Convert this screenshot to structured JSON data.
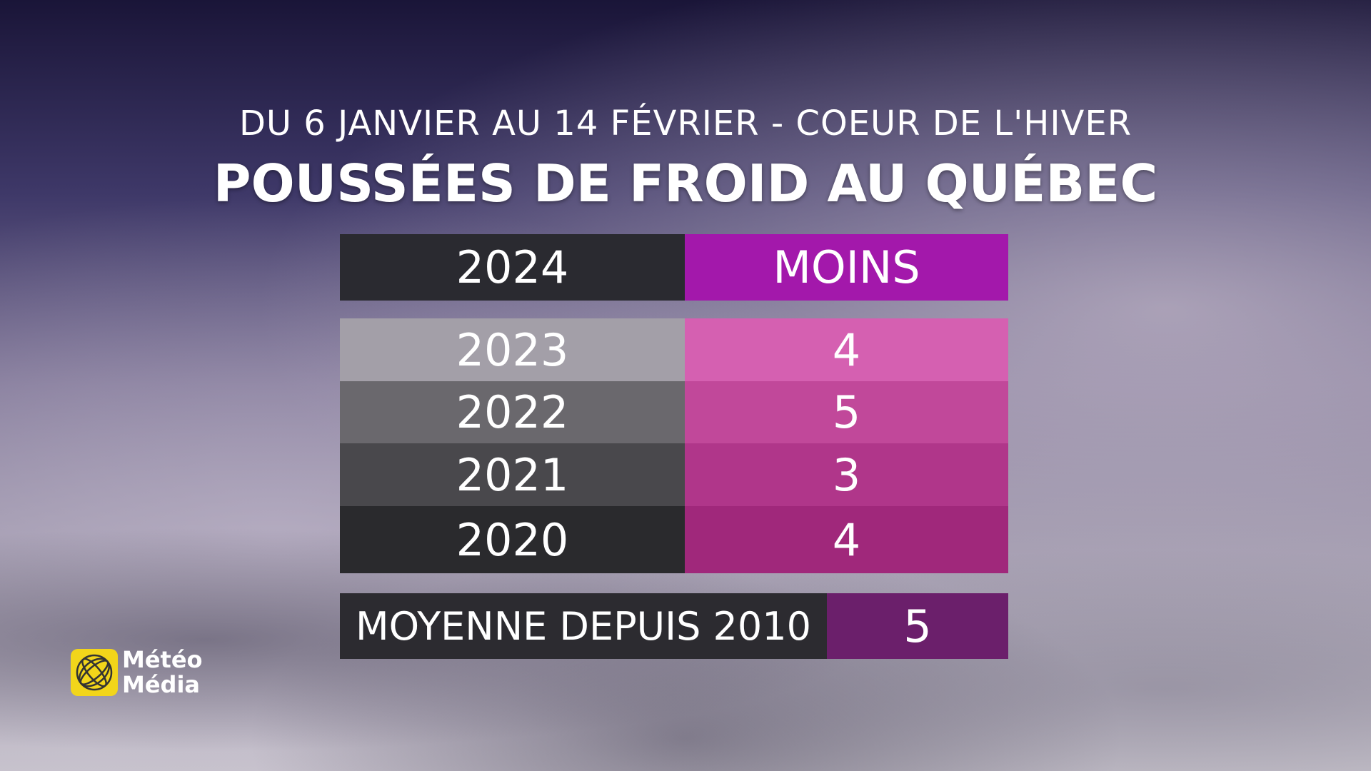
{
  "header": {
    "subtitle": "DU 6 JANVIER AU 14 FÉVRIER - COEUR DE L'HIVER",
    "title": "POUSSÉES DE FROID AU QUÉBEC"
  },
  "table": {
    "header": [
      "2024",
      "MOINS"
    ],
    "rows": [
      [
        "2023",
        4
      ],
      [
        "2022",
        5
      ],
      [
        "2021",
        3
      ],
      [
        "2020",
        4
      ]
    ],
    "footer": [
      "MOYENNE DEPUIS 2010",
      5
    ]
  },
  "logo": {
    "line1": "Météo",
    "line2": "Média"
  }
}
